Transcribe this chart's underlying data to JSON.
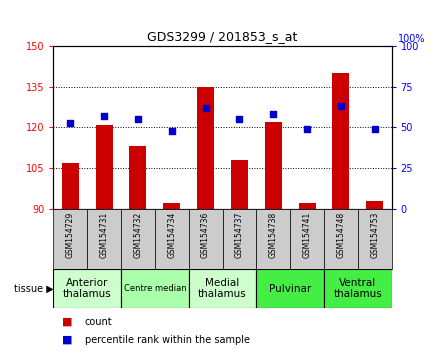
{
  "title": "GDS3299 / 201853_s_at",
  "samples": [
    "GSM154729",
    "GSM154731",
    "GSM154732",
    "GSM154734",
    "GSM154736",
    "GSM154737",
    "GSM154738",
    "GSM154741",
    "GSM154748",
    "GSM154753"
  ],
  "counts": [
    107,
    121,
    113,
    92,
    135,
    108,
    122,
    92,
    140,
    93
  ],
  "percentiles": [
    53,
    57,
    55,
    48,
    62,
    55,
    58,
    49,
    63,
    49
  ],
  "ylim_left": [
    90,
    150
  ],
  "ylim_right": [
    0,
    100
  ],
  "yticks_left": [
    90,
    105,
    120,
    135,
    150
  ],
  "yticks_right": [
    0,
    25,
    50,
    75,
    100
  ],
  "bar_color": "#cc0000",
  "dot_color": "#0000cc",
  "tissue_groups": [
    {
      "label": "Anterior\nthalamus",
      "start": 0,
      "end": 2,
      "color": "#ccffcc",
      "fontsize": 7.5
    },
    {
      "label": "Centre median",
      "start": 2,
      "end": 4,
      "color": "#aaffaa",
      "fontsize": 6
    },
    {
      "label": "Medial\nthalamus",
      "start": 4,
      "end": 6,
      "color": "#ccffcc",
      "fontsize": 7.5
    },
    {
      "label": "Pulvinar",
      "start": 6,
      "end": 8,
      "color": "#44ee44",
      "fontsize": 7.5
    },
    {
      "label": "Ventral\nthalamus",
      "start": 8,
      "end": 10,
      "color": "#44ee44",
      "fontsize": 7.5
    }
  ],
  "tick_bg_color": "#cccccc",
  "plot_bg": "#ffffff",
  "right_ylabel": "100%"
}
